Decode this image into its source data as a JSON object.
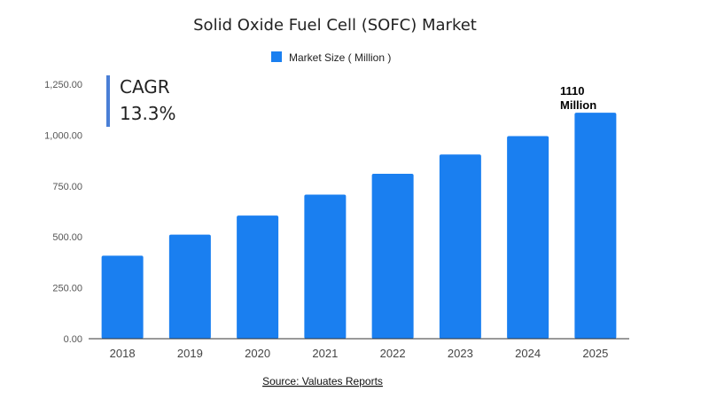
{
  "chart_data": {
    "type": "bar",
    "title": "Solid Oxide Fuel Cell (SOFC) Market",
    "categories": [
      "2018",
      "2019",
      "2020",
      "2021",
      "2022",
      "2023",
      "2024",
      "2025"
    ],
    "series": [
      {
        "name": "Market Size ( Million )",
        "values": [
          408,
          511,
          605,
          708,
          810,
          905,
          995,
          1110
        ],
        "color": "#1a7ff0"
      }
    ],
    "xlabel": "",
    "ylabel": "",
    "ylim": [
      0,
      1250
    ],
    "yticks": [
      0,
      250,
      500,
      750,
      1000,
      1250
    ],
    "ytick_labels": [
      "0.00",
      "250.00",
      "500.00",
      "750.00",
      "1,000.00",
      "1,250.00"
    ],
    "legend_position": "top-center",
    "grid": false,
    "annotations": {
      "cagr_title": "CAGR",
      "cagr_value": "13.3%",
      "cagr_bar_color": "#4a7fd6",
      "last_bar_value_line1": "1110",
      "last_bar_value_line2": "Million"
    },
    "source": "Source: Valuates Reports"
  }
}
